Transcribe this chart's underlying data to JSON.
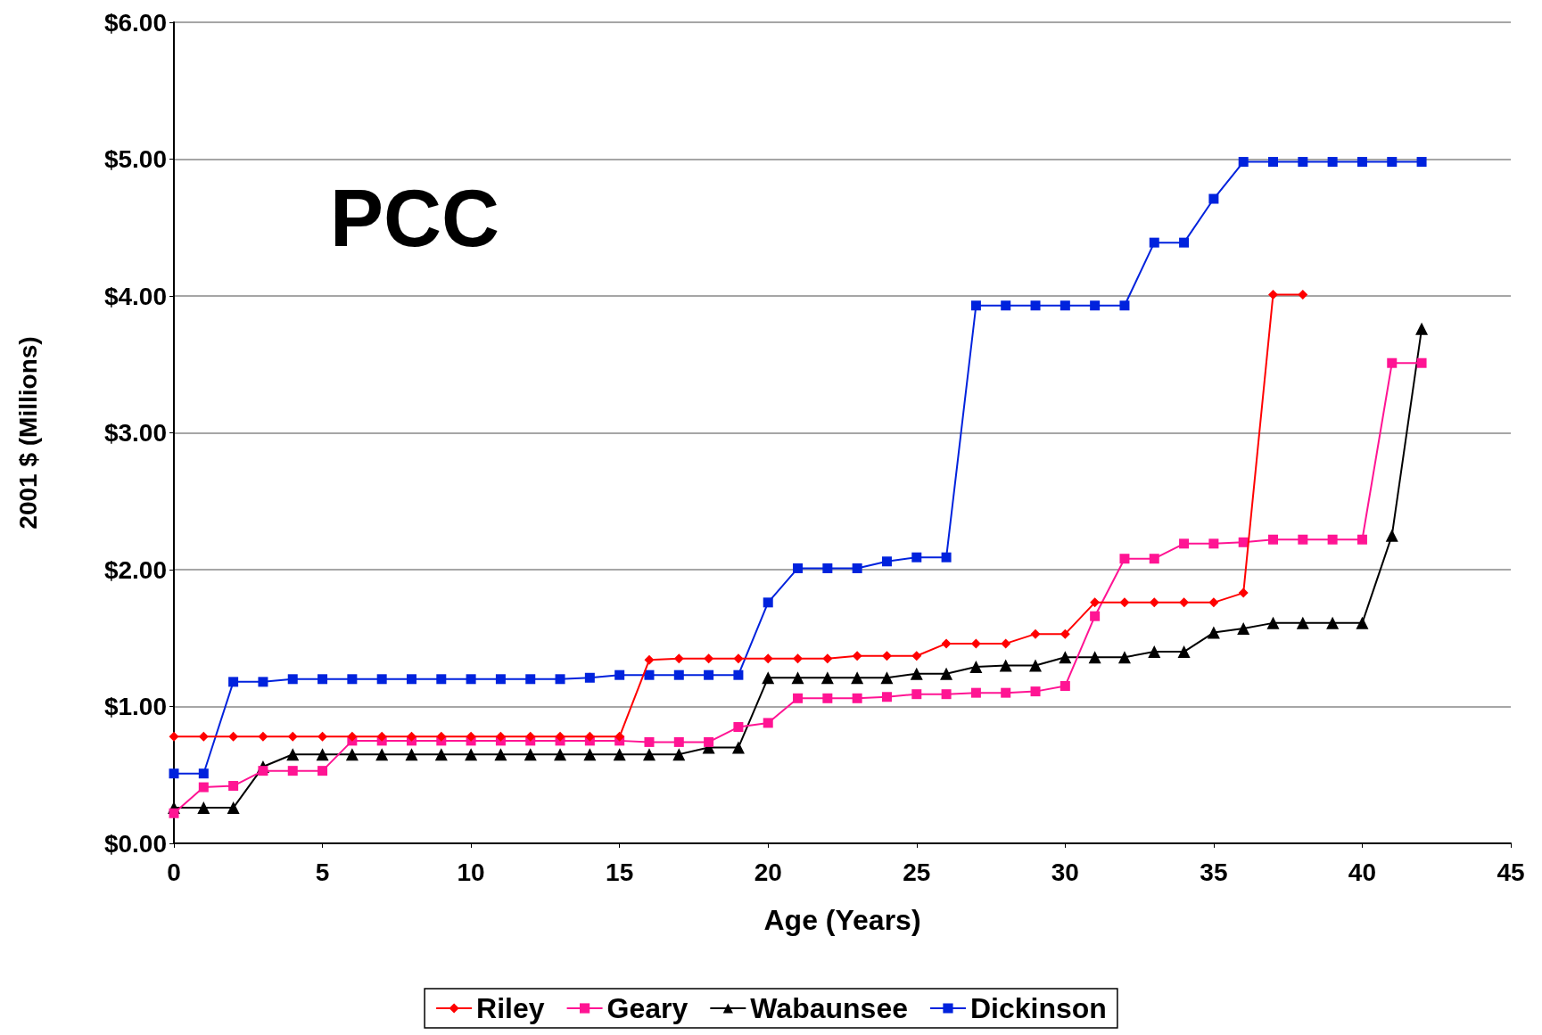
{
  "chart_data": {
    "type": "line",
    "xlabel": "Age (Years)",
    "ylabel": "2001 $ (Millions)",
    "annotations": [
      "PCC"
    ],
    "x": [
      0,
      1,
      2,
      3,
      4,
      5,
      6,
      7,
      8,
      9,
      10,
      11,
      12,
      13,
      14,
      15,
      16,
      17,
      18,
      19,
      20,
      21,
      22,
      23,
      24,
      25,
      26,
      27,
      28,
      29,
      30,
      31,
      32,
      33,
      34,
      35,
      36,
      37,
      38,
      39,
      40,
      41,
      42
    ],
    "series": [
      {
        "name": "Riley",
        "color": "#ff0000",
        "marker": "diamond",
        "values": [
          0.78,
          0.78,
          0.78,
          0.78,
          0.78,
          0.78,
          0.78,
          0.78,
          0.78,
          0.78,
          0.78,
          0.78,
          0.78,
          0.78,
          0.78,
          0.78,
          1.34,
          1.35,
          1.35,
          1.35,
          1.35,
          1.35,
          1.35,
          1.37,
          1.37,
          1.37,
          1.46,
          1.46,
          1.46,
          1.53,
          1.53,
          1.76,
          1.76,
          1.76,
          1.76,
          1.76,
          1.83,
          4.01,
          4.01,
          null,
          null,
          null,
          null
        ]
      },
      {
        "name": "Geary",
        "color": "#ff1493",
        "marker": "square",
        "values": [
          0.22,
          0.41,
          0.42,
          0.53,
          0.53,
          0.53,
          0.75,
          0.75,
          0.75,
          0.75,
          0.75,
          0.75,
          0.75,
          0.75,
          0.75,
          0.75,
          0.74,
          0.74,
          0.74,
          0.85,
          0.88,
          1.06,
          1.06,
          1.06,
          1.07,
          1.09,
          1.09,
          1.1,
          1.1,
          1.11,
          1.15,
          1.66,
          2.08,
          2.08,
          2.19,
          2.19,
          2.2,
          2.22,
          2.22,
          2.22,
          2.22,
          3.51,
          3.51
        ]
      },
      {
        "name": "Wabaunsee",
        "color": "#000000",
        "marker": "triangle",
        "values": [
          0.26,
          0.26,
          0.26,
          0.56,
          0.65,
          0.65,
          0.65,
          0.65,
          0.65,
          0.65,
          0.65,
          0.65,
          0.65,
          0.65,
          0.65,
          0.65,
          0.65,
          0.65,
          0.7,
          0.7,
          1.21,
          1.21,
          1.21,
          1.21,
          1.21,
          1.24,
          1.24,
          1.29,
          1.3,
          1.3,
          1.36,
          1.36,
          1.36,
          1.4,
          1.4,
          1.54,
          1.57,
          1.61,
          1.61,
          1.61,
          1.61,
          2.25,
          3.76
        ]
      },
      {
        "name": "Dickinson",
        "color": "#0022dd",
        "marker": "square",
        "values": [
          0.51,
          0.51,
          1.18,
          1.18,
          1.2,
          1.2,
          1.2,
          1.2,
          1.2,
          1.2,
          1.2,
          1.2,
          1.2,
          1.2,
          1.21,
          1.23,
          1.23,
          1.23,
          1.23,
          1.23,
          1.76,
          2.01,
          2.01,
          2.01,
          2.06,
          2.09,
          2.09,
          3.93,
          3.93,
          3.93,
          3.93,
          3.93,
          3.93,
          4.39,
          4.39,
          4.71,
          4.98,
          4.98,
          4.98,
          4.98,
          4.98,
          4.98,
          4.98
        ]
      }
    ],
    "xlim": [
      0,
      45
    ],
    "xticks": [
      0,
      5,
      10,
      15,
      20,
      25,
      30,
      35,
      40,
      45
    ],
    "ylim": [
      0,
      6
    ],
    "yticks": [
      {
        "value": 0,
        "label": "$0.00"
      },
      {
        "value": 1,
        "label": "$1.00"
      },
      {
        "value": 2,
        "label": "$2.00"
      },
      {
        "value": 3,
        "label": "$3.00"
      },
      {
        "value": 4,
        "label": "$4.00"
      },
      {
        "value": 5,
        "label": "$5.00"
      },
      {
        "value": 6,
        "label": "$6.00"
      }
    ],
    "grid": "y",
    "legend": "bottom",
    "line_style": "solid"
  }
}
